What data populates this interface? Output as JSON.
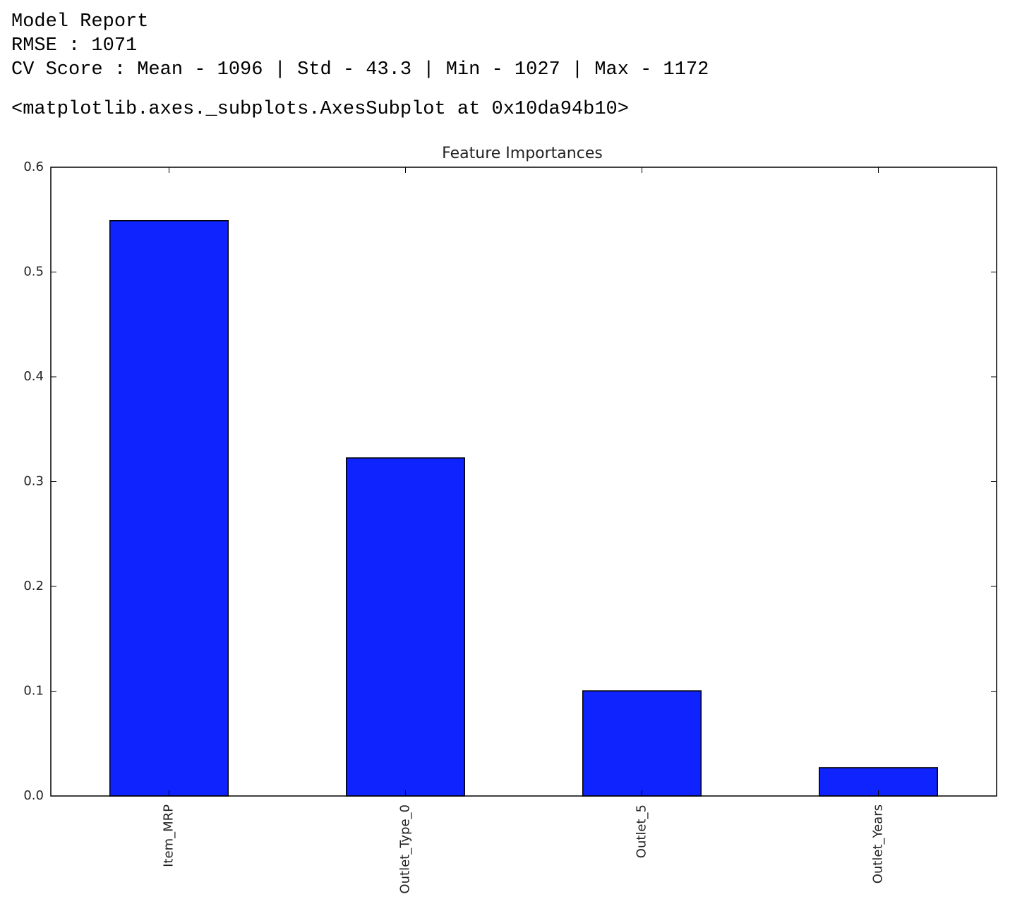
{
  "output": {
    "lines": [
      "Model Report",
      "RMSE : 1071",
      "CV Score : Mean - 1096 | Std - 43.3 | Min - 1027 | Max - 1172"
    ],
    "repr": "<matplotlib.axes._subplots.AxesSubplot at 0x10da94b10>"
  },
  "chart_data": {
    "type": "bar",
    "title": "Feature Importances",
    "categories": [
      "Item_MRP",
      "Outlet_Type_0",
      "Outlet_5",
      "Outlet_Years"
    ],
    "values": [
      0.549,
      0.3226,
      0.1003,
      0.027
    ],
    "color": "#0f23ff",
    "ylim": [
      0,
      0.6
    ],
    "yticks": [
      {
        "value": 0,
        "label": "0.0"
      },
      0.1,
      0.2,
      0.3,
      0.4,
      0.5,
      0.6
    ],
    "grid": false
  }
}
